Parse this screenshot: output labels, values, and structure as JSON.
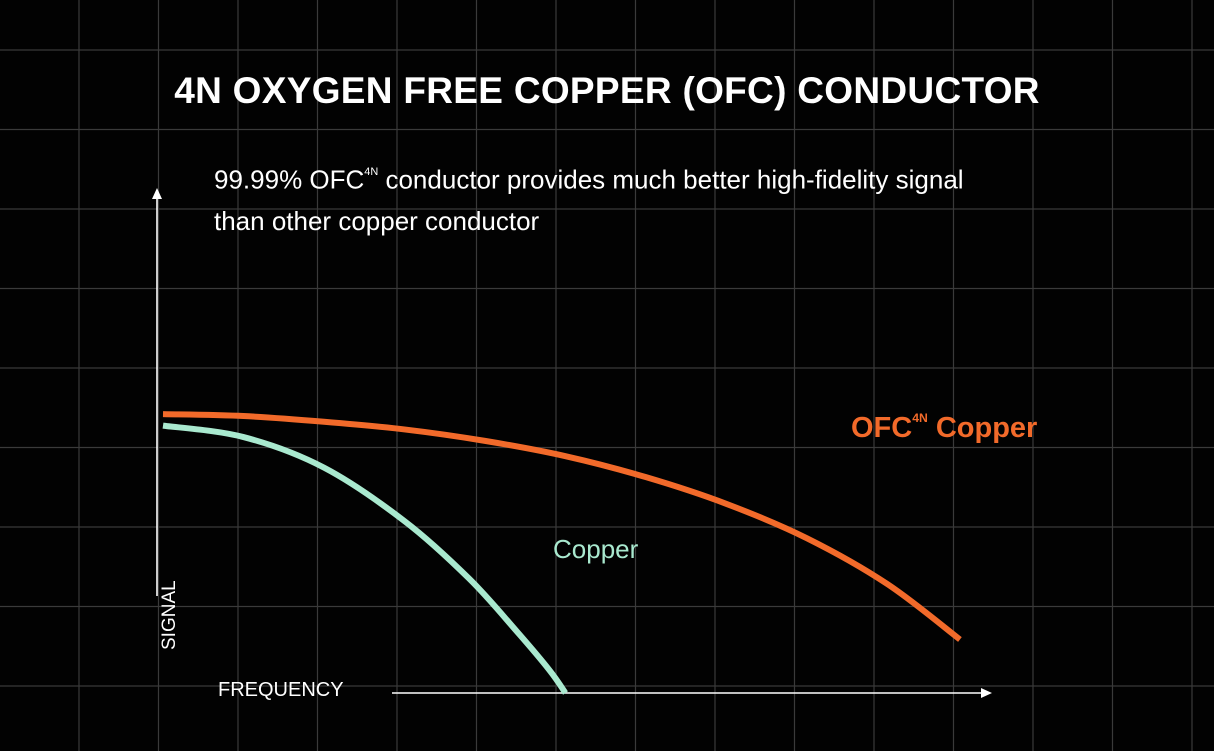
{
  "header": {
    "title": "4N OXYGEN FREE COPPER (OFC) CONDUCTOR",
    "subtitle_line1_prefix": "99.99% OFC",
    "subtitle_sup": "4N",
    "subtitle_line1_suffix": " conductor provides much better high-fidelity signal",
    "subtitle_line2": "than other copper conductor"
  },
  "chart_data": {
    "type": "line",
    "title": "4N OXYGEN FREE COPPER (OFC) CONDUCTOR",
    "xlabel": "FREQUENCY",
    "ylabel": "SIGNAL",
    "xlim": [
      0,
      10
    ],
    "ylim": [
      0,
      10
    ],
    "grid": true,
    "legend": "inline-labels",
    "series": [
      {
        "name": "OFC4N Copper",
        "label_main": "OFC",
        "label_sup": "4N",
        "label_tail": " Copper",
        "color": "#f26a2a",
        "x": [
          0,
          1,
          2,
          3,
          4,
          5,
          6,
          7,
          8,
          9,
          9.9
        ],
        "y": [
          7.3,
          7.25,
          7.1,
          6.9,
          6.6,
          6.2,
          5.65,
          4.95,
          4.05,
          2.85,
          1.4
        ]
      },
      {
        "name": "Copper",
        "label_main": "Copper",
        "color": "#a9e9cf",
        "x": [
          0,
          1,
          2,
          3,
          3.8,
          4.4,
          4.8,
          5.0
        ],
        "y": [
          7.0,
          6.7,
          5.9,
          4.5,
          3.0,
          1.6,
          0.6,
          0
        ]
      }
    ]
  },
  "colors": {
    "background": "#020202",
    "grid": "#3a3a3a",
    "axis": "#ffffff"
  }
}
